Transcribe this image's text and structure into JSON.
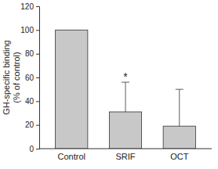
{
  "chart_data": {
    "type": "bar",
    "y_label": [
      "GH-specific binding",
      "(% of control)"
    ],
    "categories": [
      "Control",
      "SRIF",
      "OCT"
    ],
    "values": [
      100,
      31,
      19
    ],
    "errors": [
      null,
      25,
      31
    ],
    "color": "#c8c8c8",
    "ylim": [
      0,
      120
    ],
    "yticks": [
      0,
      20,
      40,
      60,
      80,
      100,
      120
    ],
    "grid": false,
    "annotations": [
      {
        "text": "*",
        "category": "SRIF"
      }
    ]
  }
}
